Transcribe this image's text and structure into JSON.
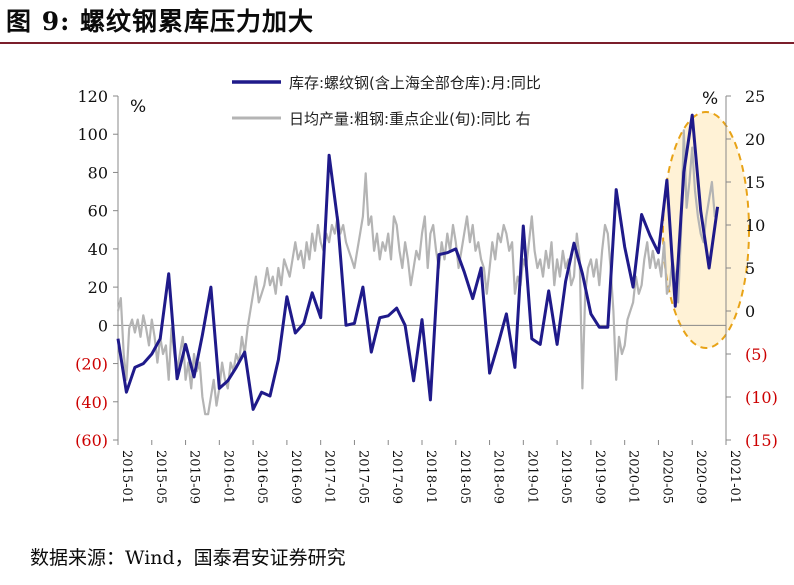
{
  "figure": {
    "title": "图 9:  螺纹钢累库压力加大",
    "source": "数据来源：Wind，国泰君安证券研究"
  },
  "chart_data": {
    "type": "line",
    "title": "",
    "left_axis": {
      "unit_label": "%",
      "ylim": [
        -60,
        120
      ],
      "ticks": [
        120,
        100,
        80,
        60,
        40,
        20,
        0,
        -20,
        -40,
        -60
      ],
      "tick_labels": [
        "120",
        "100",
        "80",
        "60",
        "40",
        "20",
        "0",
        "(20)",
        "(40)",
        "(60)"
      ]
    },
    "right_axis": {
      "unit_label": "%",
      "ylim": [
        -15,
        25
      ],
      "ticks": [
        25,
        20,
        15,
        10,
        5,
        0,
        -5,
        -10,
        -15
      ],
      "tick_labels": [
        "25",
        "20",
        "15",
        "10",
        "5",
        "0",
        "(5)",
        "(10)",
        "(15)"
      ]
    },
    "negative_label_color": "#cc0000",
    "x_range": [
      "2015-01",
      "2021-01"
    ],
    "x_tick_labels": [
      "2015-01",
      "2015-05",
      "2015-09",
      "2016-01",
      "2016-05",
      "2016-09",
      "2017-01",
      "2017-05",
      "2017-09",
      "2018-01",
      "2018-05",
      "2018-09",
      "2019-01",
      "2019-05",
      "2019-09",
      "2020-01",
      "2020-05",
      "2020-09",
      "2021-01"
    ],
    "series": [
      {
        "name": "库存:螺纹钢(含上海全部仓库):月:同比",
        "axis": "left",
        "color": "#1f1a8a",
        "values": [
          [
            0,
            -7
          ],
          [
            1,
            -35
          ],
          [
            2,
            -22
          ],
          [
            3,
            -20
          ],
          [
            4,
            -15
          ],
          [
            5,
            -7
          ],
          [
            6,
            27
          ],
          [
            7,
            -28
          ],
          [
            8,
            -10
          ],
          [
            9,
            -27
          ],
          [
            10,
            -5
          ],
          [
            11,
            20
          ],
          [
            12,
            -33
          ],
          [
            13,
            -29
          ],
          [
            14,
            -22
          ],
          [
            15,
            -14
          ],
          [
            16,
            -44
          ],
          [
            17,
            -35
          ],
          [
            18,
            -37
          ],
          [
            19,
            -18
          ],
          [
            20,
            15
          ],
          [
            21,
            -4
          ],
          [
            22,
            1
          ],
          [
            23,
            17
          ],
          [
            24,
            4
          ],
          [
            25,
            89
          ],
          [
            26,
            55
          ],
          [
            27,
            0
          ],
          [
            28,
            1
          ],
          [
            29,
            20
          ],
          [
            30,
            -14
          ],
          [
            31,
            4
          ],
          [
            32,
            5
          ],
          [
            33,
            9
          ],
          [
            34,
            0
          ],
          [
            35,
            -29
          ],
          [
            36,
            3
          ],
          [
            37,
            -39
          ],
          [
            38,
            37
          ],
          [
            39,
            38
          ],
          [
            40,
            40
          ],
          [
            41,
            28
          ],
          [
            42,
            14
          ],
          [
            43,
            30
          ],
          [
            44,
            -25
          ],
          [
            45,
            -10
          ],
          [
            46,
            6
          ],
          [
            47,
            -22
          ],
          [
            48,
            52
          ],
          [
            49,
            -7
          ],
          [
            50,
            -10
          ],
          [
            51,
            18
          ],
          [
            52,
            -10
          ],
          [
            53,
            23
          ],
          [
            54,
            43
          ],
          [
            55,
            27
          ],
          [
            56,
            6
          ],
          [
            57,
            -1
          ],
          [
            58,
            -1
          ],
          [
            59,
            71
          ],
          [
            60,
            41
          ],
          [
            61,
            20
          ],
          [
            62,
            58
          ],
          [
            63,
            47
          ],
          [
            64,
            38
          ],
          [
            65,
            76
          ],
          [
            66,
            10
          ],
          [
            67,
            80
          ],
          [
            68,
            110
          ],
          [
            69,
            60
          ],
          [
            70,
            30
          ],
          [
            71,
            62
          ]
        ]
      },
      {
        "name": "日均产量:粗钢:重点企业(旬):同比 右",
        "axis": "right",
        "color": "#b4b4b4",
        "values": [
          [
            0,
            0
          ],
          [
            0.33,
            1.5
          ],
          [
            0.67,
            -5
          ],
          [
            1,
            -8
          ],
          [
            1.33,
            -2
          ],
          [
            1.67,
            -1
          ],
          [
            2,
            -2.5
          ],
          [
            2.33,
            -1
          ],
          [
            2.67,
            -3
          ],
          [
            3,
            -0.5
          ],
          [
            3.33,
            -2
          ],
          [
            3.67,
            -4
          ],
          [
            4,
            -1
          ],
          [
            4.33,
            -3
          ],
          [
            4.67,
            -6
          ],
          [
            5,
            -3
          ],
          [
            5.33,
            -5
          ],
          [
            5.67,
            -4
          ],
          [
            6,
            -8
          ],
          [
            6.33,
            -2
          ],
          [
            6.67,
            -5
          ],
          [
            7,
            -7
          ],
          [
            7.33,
            -5
          ],
          [
            7.67,
            -3
          ],
          [
            8,
            -8
          ],
          [
            8.33,
            -6
          ],
          [
            8.67,
            -9
          ],
          [
            9,
            -5
          ],
          [
            9.33,
            -7
          ],
          [
            9.67,
            -6
          ],
          [
            10,
            -10
          ],
          [
            10.33,
            -12
          ],
          [
            10.67,
            -12
          ],
          [
            11,
            -10
          ],
          [
            11.33,
            -8
          ],
          [
            11.67,
            -11
          ],
          [
            12,
            -9
          ],
          [
            12.33,
            -6
          ],
          [
            12.67,
            -8
          ],
          [
            13,
            -9
          ],
          [
            13.33,
            -6
          ],
          [
            13.67,
            -7
          ],
          [
            14,
            -5
          ],
          [
            14.33,
            -6
          ],
          [
            14.67,
            -3
          ],
          [
            15,
            -5
          ],
          [
            15.33,
            -2
          ],
          [
            15.67,
            0
          ],
          [
            16,
            2
          ],
          [
            16.33,
            4
          ],
          [
            16.67,
            1
          ],
          [
            17,
            2
          ],
          [
            17.33,
            3
          ],
          [
            17.67,
            5
          ],
          [
            18,
            3
          ],
          [
            18.33,
            4
          ],
          [
            18.67,
            2
          ],
          [
            19,
            5
          ],
          [
            19.33,
            3
          ],
          [
            19.67,
            6
          ],
          [
            20,
            5
          ],
          [
            20.33,
            4
          ],
          [
            20.67,
            6
          ],
          [
            21,
            8
          ],
          [
            21.33,
            6
          ],
          [
            21.67,
            7
          ],
          [
            22,
            5
          ],
          [
            22.33,
            8
          ],
          [
            22.67,
            6
          ],
          [
            23,
            9
          ],
          [
            23.33,
            7
          ],
          [
            23.67,
            10
          ],
          [
            24,
            8
          ],
          [
            24.33,
            7
          ],
          [
            24.67,
            9
          ],
          [
            25,
            8
          ],
          [
            25.33,
            10
          ],
          [
            25.67,
            9
          ],
          [
            26,
            11
          ],
          [
            26.33,
            9
          ],
          [
            26.67,
            10
          ],
          [
            27,
            8
          ],
          [
            27.33,
            7
          ],
          [
            27.67,
            6
          ],
          [
            28,
            5
          ],
          [
            28.33,
            7
          ],
          [
            28.67,
            9
          ],
          [
            29,
            11
          ],
          [
            29.33,
            16
          ],
          [
            29.67,
            10
          ],
          [
            30,
            11
          ],
          [
            30.33,
            7
          ],
          [
            30.67,
            9
          ],
          [
            31,
            6
          ],
          [
            31.33,
            8
          ],
          [
            31.67,
            7
          ],
          [
            32,
            9
          ],
          [
            32.33,
            6
          ],
          [
            32.67,
            11
          ],
          [
            33,
            10
          ],
          [
            33.33,
            7
          ],
          [
            33.67,
            5
          ],
          [
            34,
            8
          ],
          [
            34.33,
            6
          ],
          [
            34.67,
            3
          ],
          [
            35,
            5
          ],
          [
            35.33,
            7
          ],
          [
            35.67,
            6
          ],
          [
            36,
            9
          ],
          [
            36.33,
            11
          ],
          [
            36.67,
            5
          ],
          [
            37,
            9
          ],
          [
            37.33,
            10
          ],
          [
            37.67,
            7
          ],
          [
            38,
            5
          ],
          [
            38.33,
            8
          ],
          [
            38.67,
            6
          ],
          [
            39,
            9
          ],
          [
            39.33,
            7
          ],
          [
            39.67,
            10
          ],
          [
            40,
            8
          ],
          [
            40.33,
            5
          ],
          [
            40.67,
            7
          ],
          [
            41,
            9
          ],
          [
            41.33,
            11
          ],
          [
            41.67,
            8
          ],
          [
            42,
            10
          ],
          [
            42.33,
            7
          ],
          [
            42.67,
            8
          ],
          [
            43,
            6
          ],
          [
            43.33,
            5
          ],
          [
            43.67,
            2
          ],
          [
            44,
            5
          ],
          [
            44.33,
            8
          ],
          [
            44.67,
            6
          ],
          [
            45,
            9
          ],
          [
            45.33,
            8
          ],
          [
            45.67,
            10
          ],
          [
            46,
            9
          ],
          [
            46.33,
            7
          ],
          [
            46.67,
            8
          ],
          [
            47,
            2
          ],
          [
            47.33,
            4
          ],
          [
            47.67,
            3
          ],
          [
            48,
            6
          ],
          [
            48.33,
            5
          ],
          [
            48.67,
            8
          ],
          [
            49,
            11
          ],
          [
            49.33,
            7
          ],
          [
            49.67,
            5
          ],
          [
            50,
            6
          ],
          [
            50.33,
            4
          ],
          [
            50.67,
            7
          ],
          [
            51,
            5
          ],
          [
            51.33,
            8
          ],
          [
            51.67,
            3
          ],
          [
            52,
            6
          ],
          [
            52.33,
            4
          ],
          [
            52.67,
            7
          ],
          [
            53,
            5
          ],
          [
            53.33,
            6
          ],
          [
            53.67,
            3
          ],
          [
            54,
            4
          ],
          [
            54.33,
            9
          ],
          [
            54.67,
            6
          ],
          [
            55,
            -9
          ],
          [
            55.33,
            2
          ],
          [
            55.67,
            5
          ],
          [
            56,
            6
          ],
          [
            56.33,
            4
          ],
          [
            56.67,
            6
          ],
          [
            57,
            3
          ],
          [
            57.33,
            7
          ],
          [
            57.67,
            10
          ],
          [
            58,
            9
          ],
          [
            58.33,
            5
          ],
          [
            58.67,
            0
          ],
          [
            59,
            -8
          ],
          [
            59.33,
            -3
          ],
          [
            59.67,
            -5
          ],
          [
            60,
            -4
          ],
          [
            60.33,
            -1
          ],
          [
            60.67,
            0
          ],
          [
            61,
            1
          ],
          [
            61.33,
            4
          ],
          [
            61.67,
            2
          ],
          [
            62,
            3
          ],
          [
            62.33,
            6
          ],
          [
            62.67,
            8
          ],
          [
            63,
            5
          ],
          [
            63.33,
            7
          ],
          [
            63.67,
            5
          ],
          [
            64,
            6
          ],
          [
            64.33,
            4
          ],
          [
            64.67,
            8
          ],
          [
            65,
            2
          ],
          [
            65.33,
            3
          ],
          [
            65.67,
            6
          ],
          [
            66,
            4
          ],
          [
            66.33,
            1
          ],
          [
            66.67,
            9
          ],
          [
            67,
            21
          ],
          [
            67.33,
            12
          ],
          [
            67.67,
            15
          ],
          [
            68,
            19
          ],
          [
            68.33,
            14
          ],
          [
            68.67,
            11
          ],
          [
            69,
            9
          ],
          [
            69.33,
            8
          ],
          [
            69.67,
            11
          ],
          [
            70,
            13
          ],
          [
            70.33,
            15
          ],
          [
            70.67,
            11
          ],
          [
            71,
            12
          ]
        ]
      }
    ],
    "annotation": "highlight ellipse on the most recent months (dashed orange)"
  }
}
